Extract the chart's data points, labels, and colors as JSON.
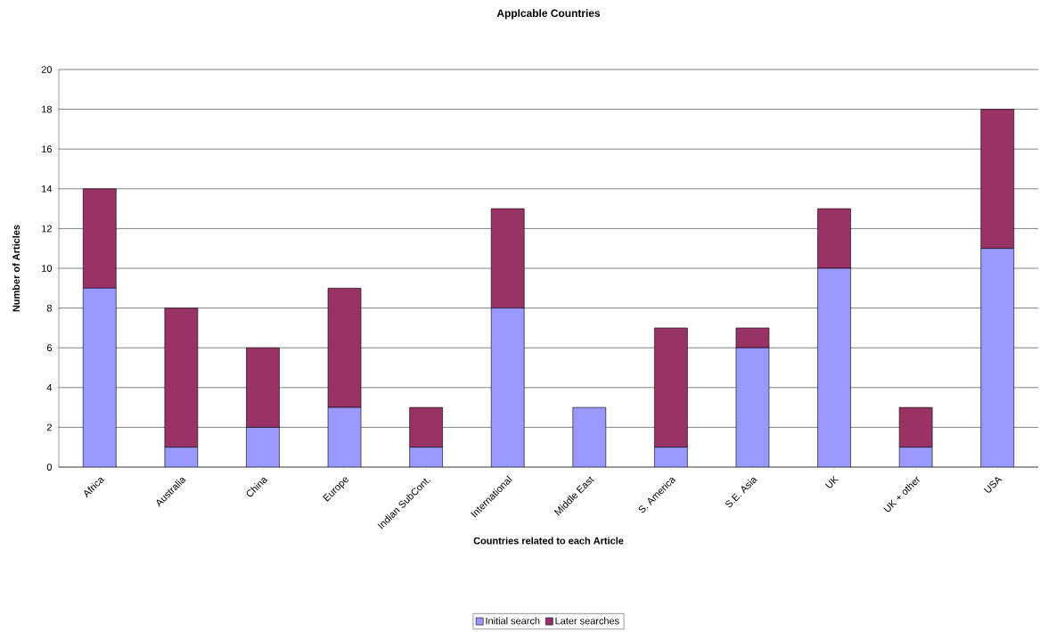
{
  "chart_data": {
    "type": "bar",
    "title": "Applcable Countries",
    "xlabel": "Countries related to each Article",
    "ylabel": "Number of Articles",
    "categories": [
      "Africa",
      "Australia",
      "China",
      "Europe",
      "Indian SubCont.",
      "International",
      "Middle East",
      "S. America",
      "S.E. Asia",
      "UK",
      "UK + other",
      "USA"
    ],
    "series": [
      {
        "name": "Initial search",
        "color": "#9999ff",
        "values": [
          9,
          1,
          2,
          3,
          1,
          8,
          3,
          1,
          6,
          10,
          1,
          11
        ]
      },
      {
        "name": "Later searches",
        "color": "#993366",
        "values": [
          5,
          7,
          4,
          6,
          2,
          5,
          0,
          6,
          1,
          3,
          2,
          7
        ]
      }
    ],
    "stacked": true,
    "ylim": [
      0,
      20
    ],
    "yticks": [
      0,
      2,
      4,
      6,
      8,
      10,
      12,
      14,
      16,
      18,
      20
    ],
    "grid": "y",
    "legend": "bottom"
  }
}
